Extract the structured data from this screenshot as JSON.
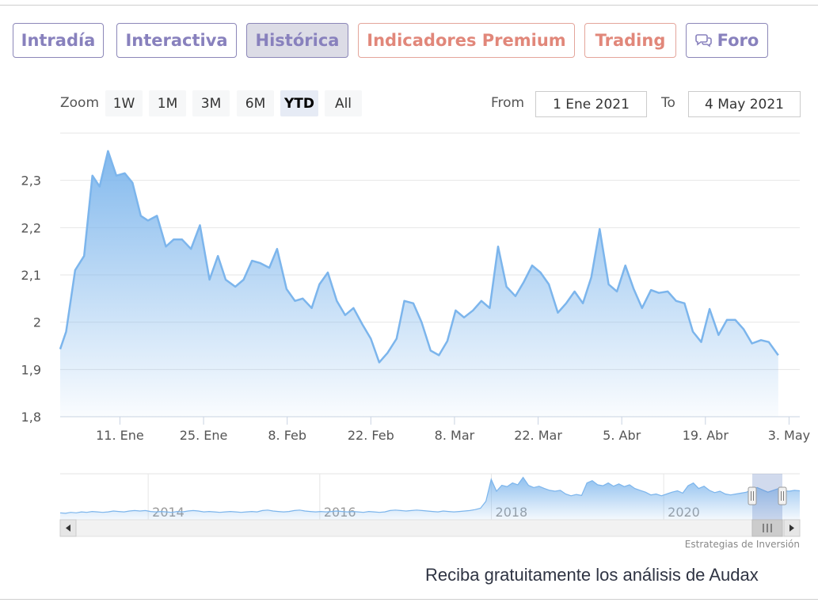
{
  "tabs": [
    {
      "label": "Intradía",
      "style": "purple"
    },
    {
      "label": "Interactiva",
      "style": "purple"
    },
    {
      "label": "Histórica",
      "style": "active"
    },
    {
      "label": "Indicadores Premium",
      "style": "rose"
    },
    {
      "label": "Trading",
      "style": "rose"
    },
    {
      "label": "Foro",
      "style": "purple",
      "icon": "speech-bubbles-icon"
    }
  ],
  "zoom": {
    "label": "Zoom",
    "buttons": [
      "1W",
      "1M",
      "3M",
      "6M",
      "YTD",
      "All"
    ],
    "selected": "YTD"
  },
  "range": {
    "from_label": "From",
    "from_value": "1 Ene 2021",
    "to_label": "To",
    "to_value": "4 May 2021"
  },
  "credit": "Estrategias de Inversión",
  "promo": "Reciba gratuitamente los análisis de Audax",
  "colors": {
    "line": "#7cb5ec",
    "fill_top": "#7cb5ec",
    "tab_purple": "#8881bd",
    "tab_rose": "#e1877a"
  },
  "chart_data": {
    "type": "area",
    "y_ticks": [
      "1,8",
      "1,9",
      "2",
      "2,1",
      "2,2",
      "2,3"
    ],
    "y_tick_values": [
      1.8,
      1.9,
      2.0,
      2.1,
      2.2,
      2.3
    ],
    "ylim": [
      1.8,
      2.4
    ],
    "x_ticks": [
      {
        "label": "11. Ene",
        "day": 10
      },
      {
        "label": "25. Ene",
        "day": 24
      },
      {
        "label": "8. Feb",
        "day": 38
      },
      {
        "label": "22. Feb",
        "day": 52
      },
      {
        "label": "8. Mar",
        "day": 66
      },
      {
        "label": "22. Mar",
        "day": 80
      },
      {
        "label": "5. Abr",
        "day": 94
      },
      {
        "label": "19. Abr",
        "day": 108
      },
      {
        "label": "3. May",
        "day": 122
      }
    ],
    "xlim": [
      0,
      123.8
    ],
    "points": [
      [
        0,
        1.943
      ],
      [
        1,
        1.98
      ],
      [
        2.5,
        2.11
      ],
      [
        4,
        2.14
      ],
      [
        5.4,
        2.31
      ],
      [
        6.6,
        2.287
      ],
      [
        8,
        2.362
      ],
      [
        9.4,
        2.31
      ],
      [
        10.8,
        2.315
      ],
      [
        12.1,
        2.295
      ],
      [
        13.5,
        2.225
      ],
      [
        14.7,
        2.215
      ],
      [
        16.2,
        2.225
      ],
      [
        17.7,
        2.16
      ],
      [
        19,
        2.175
      ],
      [
        20.4,
        2.175
      ],
      [
        21.9,
        2.155
      ],
      [
        23.4,
        2.205
      ],
      [
        25,
        2.09
      ],
      [
        26.4,
        2.14
      ],
      [
        27.7,
        2.09
      ],
      [
        29.3,
        2.075
      ],
      [
        30.7,
        2.09
      ],
      [
        32.1,
        2.13
      ],
      [
        33.5,
        2.125
      ],
      [
        35,
        2.115
      ],
      [
        36.3,
        2.155
      ],
      [
        37.9,
        2.07
      ],
      [
        39.3,
        2.045
      ],
      [
        40.6,
        2.05
      ],
      [
        42.1,
        2.03
      ],
      [
        43.4,
        2.08
      ],
      [
        44.8,
        2.105
      ],
      [
        46.3,
        2.045
      ],
      [
        47.7,
        2.015
      ],
      [
        49.1,
        2.03
      ],
      [
        50.6,
        1.995
      ],
      [
        52,
        1.965
      ],
      [
        53.4,
        1.915
      ],
      [
        54.8,
        1.935
      ],
      [
        56.3,
        1.965
      ],
      [
        57.6,
        2.045
      ],
      [
        59.1,
        2.04
      ],
      [
        60.5,
        2.0
      ],
      [
        62,
        1.94
      ],
      [
        63.4,
        1.93
      ],
      [
        64.8,
        1.96
      ],
      [
        66.2,
        2.025
      ],
      [
        67.6,
        2.01
      ],
      [
        69.1,
        2.025
      ],
      [
        70.5,
        2.045
      ],
      [
        71.9,
        2.03
      ],
      [
        73.3,
        2.16
      ],
      [
        74.7,
        2.075
      ],
      [
        76.2,
        2.055
      ],
      [
        77.6,
        2.085
      ],
      [
        79,
        2.12
      ],
      [
        80.4,
        2.105
      ],
      [
        81.8,
        2.08
      ],
      [
        83.3,
        2.02
      ],
      [
        84.7,
        2.04
      ],
      [
        86.1,
        2.065
      ],
      [
        87.5,
        2.04
      ],
      [
        88.9,
        2.095
      ],
      [
        90.3,
        2.197
      ],
      [
        91.8,
        2.08
      ],
      [
        93.2,
        2.065
      ],
      [
        94.6,
        2.12
      ],
      [
        96,
        2.07
      ],
      [
        97.4,
        2.03
      ],
      [
        98.9,
        2.068
      ],
      [
        100.2,
        2.062
      ],
      [
        101.7,
        2.065
      ],
      [
        103.1,
        2.045
      ],
      [
        104.5,
        2.04
      ],
      [
        105.9,
        1.98
      ],
      [
        107.3,
        1.958
      ],
      [
        108.7,
        2.028
      ],
      [
        110.2,
        1.973
      ],
      [
        111.6,
        2.005
      ],
      [
        113,
        2.005
      ],
      [
        114.4,
        1.985
      ],
      [
        115.8,
        1.955
      ],
      [
        117.3,
        1.962
      ],
      [
        118.6,
        1.958
      ],
      [
        120.2,
        1.93
      ]
    ],
    "navigator": {
      "labels": [
        "2014",
        "2016",
        "2018",
        "2020"
      ],
      "series": [
        1.25,
        1.24,
        1.26,
        1.25,
        1.27,
        1.26,
        1.28,
        1.27,
        1.26,
        1.27,
        1.29,
        1.28,
        1.27,
        1.29,
        1.3,
        1.29,
        1.3,
        1.28,
        1.27,
        1.28,
        1.27,
        1.26,
        1.28,
        1.27,
        1.29,
        1.3,
        1.29,
        1.27,
        1.28,
        1.27,
        1.26,
        1.27,
        1.28,
        1.27,
        1.26,
        1.27,
        1.28,
        1.27,
        1.3,
        1.31,
        1.29,
        1.28,
        1.27,
        1.28,
        1.3,
        1.31,
        1.29,
        1.28,
        1.27,
        1.28,
        1.27,
        1.28,
        1.29,
        1.28,
        1.27,
        1.28,
        1.27,
        1.26,
        1.28,
        1.27,
        1.26,
        1.27,
        1.3,
        1.31,
        1.3,
        1.29,
        1.3,
        1.31,
        1.3,
        1.29,
        1.28,
        1.27,
        1.29,
        1.28,
        1.27,
        1.28,
        1.29,
        1.3,
        1.32,
        1.35,
        1.5,
        1.98,
        1.72,
        1.85,
        1.82,
        1.9,
        1.86,
        2.02,
        1.85,
        1.8,
        1.83,
        1.78,
        1.74,
        1.72,
        1.74,
        1.66,
        1.62,
        1.65,
        1.63,
        1.9,
        1.95,
        1.86,
        1.84,
        1.9,
        1.83,
        1.88,
        1.82,
        1.86,
        1.78,
        1.74,
        1.7,
        1.64,
        1.66,
        1.62,
        1.66,
        1.7,
        1.73,
        1.68,
        1.84,
        1.9,
        1.78,
        1.83,
        1.74,
        1.69,
        1.72,
        1.66,
        1.64,
        1.66,
        1.68,
        1.7,
        1.76,
        1.8,
        1.75,
        1.7,
        1.74,
        1.78,
        1.73,
        1.72,
        1.74,
        1.73
      ]
    }
  }
}
